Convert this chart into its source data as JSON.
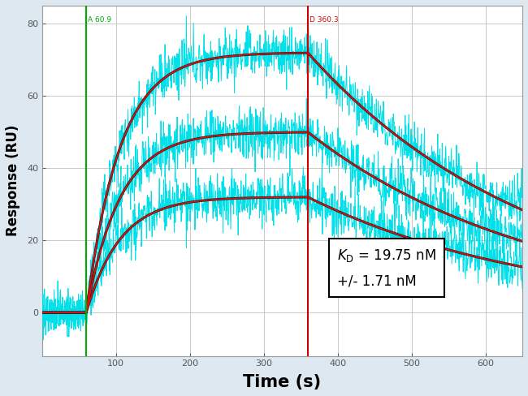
{
  "xlabel": "Time (s)",
  "ylabel": "Response (RU)",
  "xlim": [
    0,
    650
  ],
  "ylim": [
    -12,
    85
  ],
  "xticks": [
    100,
    200,
    300,
    400,
    500,
    600
  ],
  "yticks": [
    0,
    20,
    40,
    60,
    80
  ],
  "green_vline": 60,
  "red_vline": 360,
  "green_vline_label": "A 60.9",
  "red_vline_label": "D 360.3",
  "curves": [
    {
      "plateau": 72,
      "ka_tau": 0.022,
      "kd_tau": 0.0032
    },
    {
      "plateau": 50,
      "ka_tau": 0.022,
      "kd_tau": 0.0032
    },
    {
      "plateau": 32,
      "ka_tau": 0.022,
      "kd_tau": 0.0032
    }
  ],
  "noise_amplitude": 3.5,
  "noise_amplitude_pre": 2.5,
  "background_color": "#dde8f0",
  "plot_bg_color": "#ffffff",
  "grid_color": "#c8c8c8",
  "cyan_color": "#00e0e8",
  "dark_fit_color": "#222222",
  "red_fit_color": "#dd1111",
  "green_line_color": "#00aa00",
  "red_line_color": "#cc0000"
}
